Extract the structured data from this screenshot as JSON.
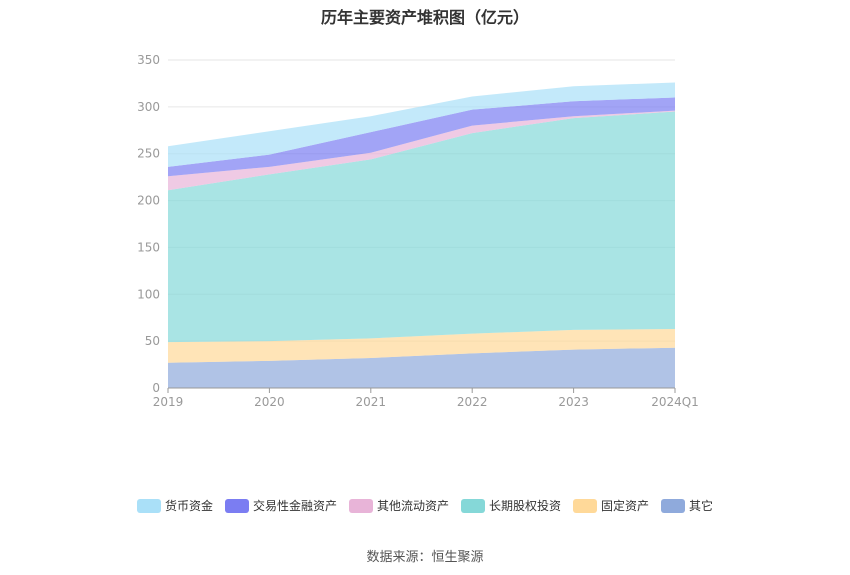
{
  "chart_data": {
    "type": "area",
    "stacked": true,
    "title": "历年主要资产堆积图（亿元）",
    "categories": [
      "2019",
      "2020",
      "2021",
      "2022",
      "2023",
      "2024Q1"
    ],
    "ylim": [
      0,
      350
    ],
    "yticks": [
      0,
      50,
      100,
      150,
      200,
      250,
      300,
      350
    ],
    "grid": true,
    "legend_position": "bottom",
    "series": [
      {
        "name": "其它",
        "color": "#8faadc",
        "values": [
          27,
          29,
          32,
          37,
          41,
          43
        ]
      },
      {
        "name": "固定资产",
        "color": "#ffd999",
        "values": [
          22,
          21,
          21,
          21,
          21,
          20
        ]
      },
      {
        "name": "长期股权投资",
        "color": "#85d8d8",
        "values": [
          162,
          178,
          191,
          214,
          226,
          232
        ]
      },
      {
        "name": "其他流动资产",
        "color": "#e8b4d8",
        "values": [
          15,
          8,
          7,
          8,
          2,
          1
        ]
      },
      {
        "name": "交易性金融资产",
        "color": "#7b7df2",
        "values": [
          10,
          13,
          22,
          17,
          16,
          14
        ]
      },
      {
        "name": "货币资金",
        "color": "#aae0f8",
        "values": [
          22,
          25,
          17,
          14,
          16,
          16
        ]
      }
    ],
    "legend_order": [
      "货币资金",
      "交易性金融资产",
      "其他流动资产",
      "长期股权投资",
      "固定资产",
      "其它"
    ]
  },
  "source_text": "数据来源：恒生聚源"
}
